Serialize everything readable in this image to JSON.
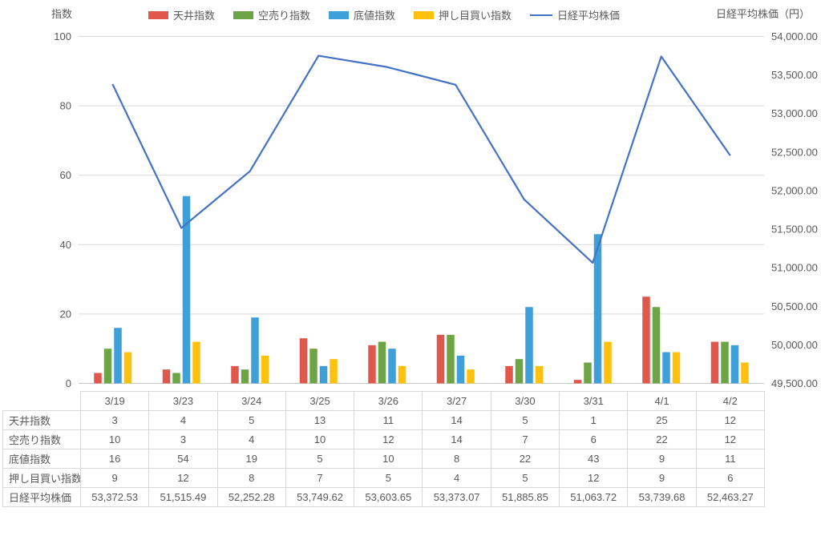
{
  "chart": {
    "left_axis_title": "指数",
    "right_axis_title": "日経平均株価（円）"
  },
  "legend": {
    "position": "top",
    "items": [
      {
        "label": "天井指数",
        "color": "#E0584B",
        "marker": "bar-swatch-icon"
      },
      {
        "label": "空売り指数",
        "color": "#6DA546",
        "marker": "bar-swatch-icon"
      },
      {
        "label": "底値指数",
        "color": "#3F9FD8",
        "marker": "bar-swatch-icon"
      },
      {
        "label": "押し目買い指数",
        "color": "#FDC10E",
        "marker": "bar-swatch-icon"
      },
      {
        "label": "日経平均株価",
        "color": "#4472C4",
        "marker": "line-icon"
      }
    ]
  },
  "chart_data": {
    "type": "bar",
    "subtype": "grouped bars with secondary-axis line (combo)",
    "categories": [
      "3/19",
      "3/23",
      "3/24",
      "3/25",
      "3/26",
      "3/27",
      "3/30",
      "3/31",
      "4/1",
      "4/2"
    ],
    "series": [
      {
        "name": "天井指数",
        "type": "bar",
        "axis": "left",
        "color": "#E0584B",
        "values": [
          3,
          4,
          5,
          13,
          11,
          14,
          5,
          1,
          25,
          12
        ]
      },
      {
        "name": "空売り指数",
        "type": "bar",
        "axis": "left",
        "color": "#6DA546",
        "values": [
          10,
          3,
          4,
          10,
          12,
          14,
          7,
          6,
          22,
          12
        ]
      },
      {
        "name": "底値指数",
        "type": "bar",
        "axis": "left",
        "color": "#3F9FD8",
        "values": [
          16,
          54,
          19,
          5,
          10,
          8,
          22,
          43,
          9,
          11
        ]
      },
      {
        "name": "押し目買い指数",
        "type": "bar",
        "axis": "left",
        "color": "#FDC10E",
        "values": [
          9,
          12,
          8,
          7,
          5,
          4,
          5,
          12,
          9,
          6
        ]
      },
      {
        "name": "日経平均株価",
        "type": "line",
        "axis": "right",
        "color": "#4472C4",
        "values": [
          53372.53,
          51515.49,
          52252.28,
          53749.62,
          53603.65,
          53373.07,
          51885.85,
          51063.72,
          53739.68,
          52463.27
        ]
      }
    ],
    "left_axis": {
      "title": "指数",
      "min": 0,
      "max": 100,
      "step": 20,
      "tick_labels": [
        "0",
        "20",
        "40",
        "60",
        "80",
        "100"
      ]
    },
    "right_axis": {
      "title": "日経平均株価（円）",
      "min": 49500,
      "max": 54000,
      "step": 500,
      "tick_labels": [
        "49,500.00",
        "50,000.00",
        "50,500.00",
        "51,000.00",
        "51,500.00",
        "52,000.00",
        "52,500.00",
        "53,000.00",
        "53,500.00",
        "54,000.00"
      ]
    },
    "grid": "horizontal gridlines on",
    "legend_position": "top"
  },
  "table": {
    "corner": "",
    "columns": [
      "3/19",
      "3/23",
      "3/24",
      "3/25",
      "3/26",
      "3/27",
      "3/30",
      "3/31",
      "4/1",
      "4/2"
    ],
    "rows": [
      {
        "label": "天井指数",
        "values": [
          "3",
          "4",
          "5",
          "13",
          "11",
          "14",
          "5",
          "1",
          "25",
          "12"
        ]
      },
      {
        "label": "空売り指数",
        "values": [
          "10",
          "3",
          "4",
          "10",
          "12",
          "14",
          "7",
          "6",
          "22",
          "12"
        ]
      },
      {
        "label": "底値指数",
        "values": [
          "16",
          "54",
          "19",
          "5",
          "10",
          "8",
          "22",
          "43",
          "9",
          "11"
        ]
      },
      {
        "label": "押し目買い指数",
        "values": [
          "9",
          "12",
          "8",
          "7",
          "5",
          "4",
          "5",
          "12",
          "9",
          "6"
        ]
      },
      {
        "label": "日経平均株価",
        "values": [
          "53,372.53",
          "51,515.49",
          "52,252.28",
          "53,749.62",
          "53,603.65",
          "53,373.07",
          "51,885.85",
          "51,063.72",
          "53,739.68",
          "52,463.27"
        ]
      }
    ]
  },
  "colors": {
    "grid_line": "#D9D9D9",
    "axis_line": "#C8C8C8",
    "text": "#595959"
  }
}
